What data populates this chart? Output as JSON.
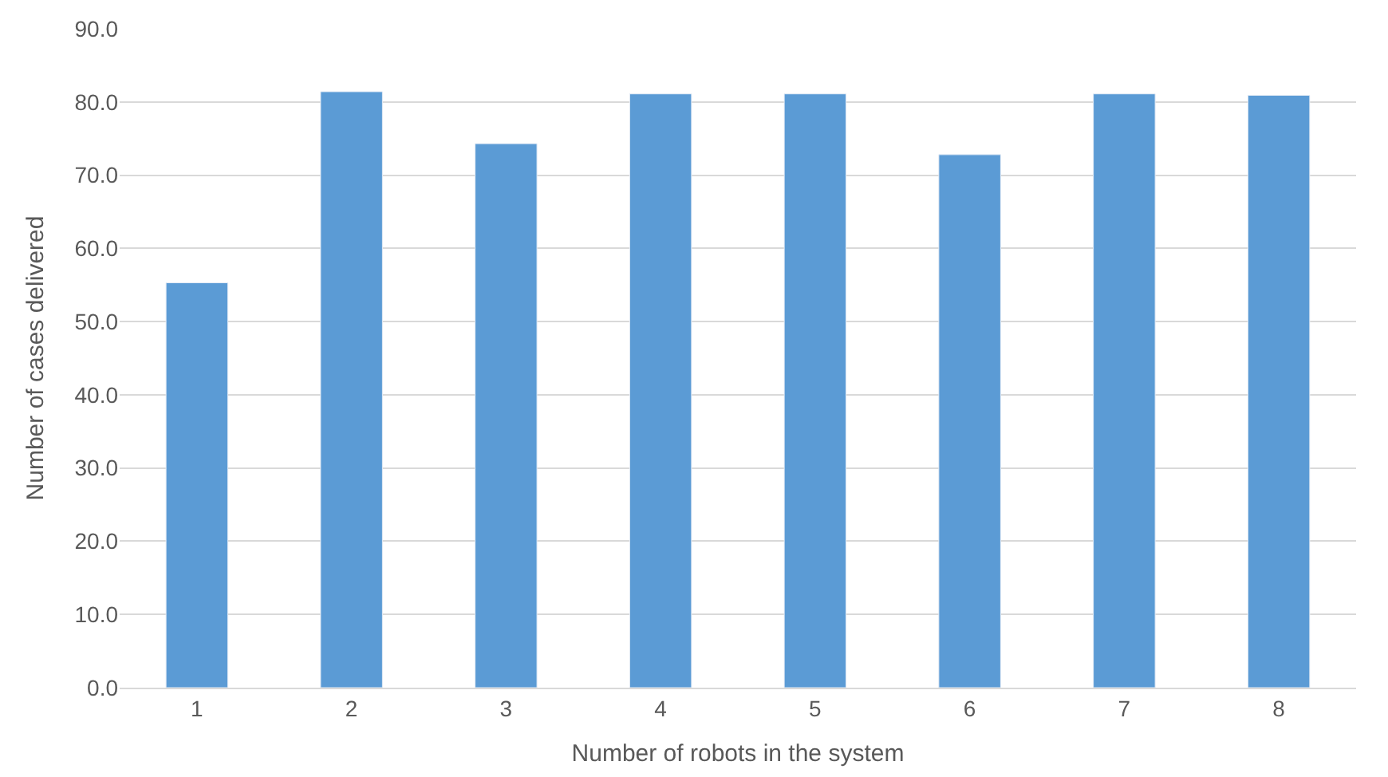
{
  "chart_data": {
    "type": "bar",
    "xlabel": "Number of robots in the system",
    "ylabel": "Number of cases delivered",
    "categories": [
      "1",
      "2",
      "3",
      "4",
      "5",
      "6",
      "7",
      "8"
    ],
    "values": [
      55.3,
      81.4,
      74.3,
      81.1,
      81.1,
      72.8,
      81.1,
      80.9
    ],
    "color": "#5b9bd5",
    "ylim": [
      0,
      90
    ],
    "yticks": [
      {
        "value": 0,
        "label": "0.0"
      },
      {
        "value": 10,
        "label": "10.0"
      },
      {
        "value": 20,
        "label": "20.0"
      },
      {
        "value": 30,
        "label": "30.0"
      },
      {
        "value": 40,
        "label": "40.0"
      },
      {
        "value": 50,
        "label": "50.0"
      },
      {
        "value": 60,
        "label": "60.0"
      },
      {
        "value": 70,
        "label": "70.0"
      },
      {
        "value": 80,
        "label": "80.0"
      },
      {
        "value": 90,
        "label": "90.0"
      }
    ],
    "grid": "y",
    "legend": false
  }
}
